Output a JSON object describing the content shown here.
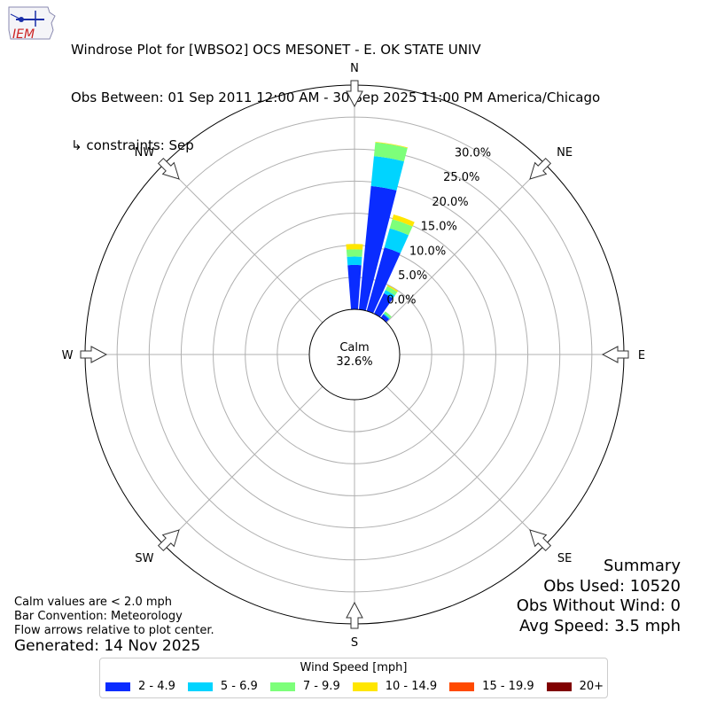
{
  "header": {
    "logo_text": "IEM",
    "title_line1": "Windrose Plot for [WBSO2] OCS MESONET - E. OK STATE UNIV",
    "title_line2": "Obs Between: 01 Sep 2011 12:00 AM - 30 Sep 2025 11:00 PM America/Chicago",
    "title_line3": "↳ constraints: Sep"
  },
  "chart_data": {
    "type": "windrose",
    "directions": [
      "N",
      "NE",
      "E",
      "SE",
      "S",
      "SW",
      "W",
      "NW"
    ],
    "radial_tick_labels": [
      "0.0%",
      "5.0%",
      "10.0%",
      "15.0%",
      "20.0%",
      "25.0%",
      "30.0%"
    ],
    "radial_range": [
      0,
      30
    ],
    "calm_label": "Calm",
    "calm_value": "32.6%",
    "bins": [
      {
        "name": "2 - 4.9",
        "color": "#0a2cff"
      },
      {
        "name": "5 - 6.9",
        "color": "#00d4ff"
      },
      {
        "name": "7 - 9.9",
        "color": "#7dff7a"
      },
      {
        "name": "10 - 14.9",
        "color": "#ffe600"
      },
      {
        "name": "15 - 19.9",
        "color": "#ff4a00"
      },
      {
        "name": "20+",
        "color": "#800000"
      }
    ],
    "bars": [
      {
        "direction_deg": 0,
        "values": [
          7.4,
          1.4,
          1.2,
          0.9,
          0.0,
          0.0
        ]
      },
      {
        "direction_deg": 10,
        "values": [
          20.7,
          5.0,
          2.3,
          0.1,
          0.0,
          0.0
        ]
      },
      {
        "direction_deg": 20,
        "values": [
          11.0,
          3.3,
          1.6,
          0.8,
          0.0,
          0.0
        ]
      },
      {
        "direction_deg": 30,
        "values": [
          3.8,
          0.6,
          0.7,
          0.2,
          0.0,
          0.0
        ]
      },
      {
        "direction_deg": 40,
        "values": [
          0.7,
          0.2,
          0.4,
          0.0,
          0.0,
          0.0
        ]
      }
    ],
    "legend_title": "Wind Speed [mph]"
  },
  "notes": {
    "line1": "Calm values are < 2.0 mph",
    "line2": "Bar Convention: Meteorology",
    "line3": "Flow arrows relative to plot center.",
    "generated": "Generated: 14 Nov 2025"
  },
  "summary": {
    "title": "Summary",
    "obs_used": "Obs Used: 10520",
    "obs_without_wind": "Obs Without Wind: 0",
    "avg_speed": "Avg Speed: 3.5 mph"
  }
}
